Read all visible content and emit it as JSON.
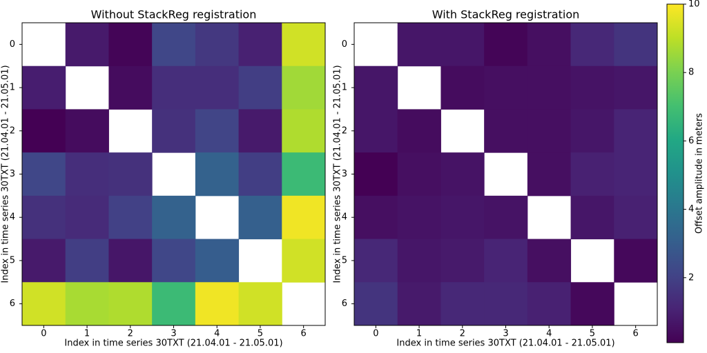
{
  "chart_data": [
    {
      "type": "heatmap",
      "title": "Without StackReg registration",
      "xlabel": "Index in time series 30TXT (21.04.01 - 21.05.01)",
      "ylabel": "Index in time series 30TXT (21.04.01 - 21.05.01)",
      "xticks": [
        0,
        1,
        2,
        3,
        4,
        5,
        6
      ],
      "yticks": [
        0,
        1,
        2,
        3,
        4,
        5,
        6
      ],
      "colormap": "viridis",
      "values": [
        [
          null,
          0.8,
          0.2,
          2.2,
          1.7,
          1.0,
          9.3
        ],
        [
          0.9,
          null,
          0.4,
          1.4,
          1.4,
          1.9,
          8.6
        ],
        [
          0.1,
          0.4,
          null,
          1.5,
          2.1,
          0.8,
          8.8
        ],
        [
          2.2,
          1.4,
          1.5,
          null,
          3.2,
          1.9,
          6.8
        ],
        [
          1.5,
          1.3,
          2.0,
          3.2,
          null,
          3.1,
          9.8
        ],
        [
          0.8,
          1.9,
          0.7,
          2.2,
          3.0,
          null,
          9.3
        ],
        [
          9.3,
          8.7,
          8.8,
          6.8,
          9.8,
          9.3,
          null
        ]
      ]
    },
    {
      "type": "heatmap",
      "title": "With StackReg registration",
      "xlabel": "Index in time series 30TXT (21.04.01 - 21.05.01)",
      "ylabel": "Index in time series 30TXT (21.04.01 - 21.05.01)",
      "xticks": [
        0,
        1,
        2,
        3,
        4,
        5,
        6
      ],
      "yticks": [
        0,
        1,
        2,
        3,
        4,
        5,
        6
      ],
      "colormap": "viridis",
      "values": [
        [
          null,
          0.7,
          0.7,
          0.2,
          0.5,
          1.2,
          1.6
        ],
        [
          0.7,
          null,
          0.4,
          0.5,
          0.5,
          0.6,
          0.7
        ],
        [
          0.7,
          0.4,
          null,
          0.5,
          0.5,
          0.7,
          1.1
        ],
        [
          0.1,
          0.5,
          0.6,
          null,
          0.5,
          1.0,
          1.1
        ],
        [
          0.5,
          0.6,
          0.7,
          0.6,
          null,
          0.7,
          1.0
        ],
        [
          1.2,
          0.7,
          0.8,
          1.1,
          0.5,
          null,
          0.3
        ],
        [
          1.6,
          0.8,
          1.2,
          1.2,
          1.0,
          0.3,
          null
        ]
      ]
    }
  ],
  "colorbar": {
    "label": "Offset amplitude in meters",
    "lim": [
      0.1,
      10
    ],
    "ticks": [
      2,
      4,
      6,
      8,
      10
    ]
  }
}
